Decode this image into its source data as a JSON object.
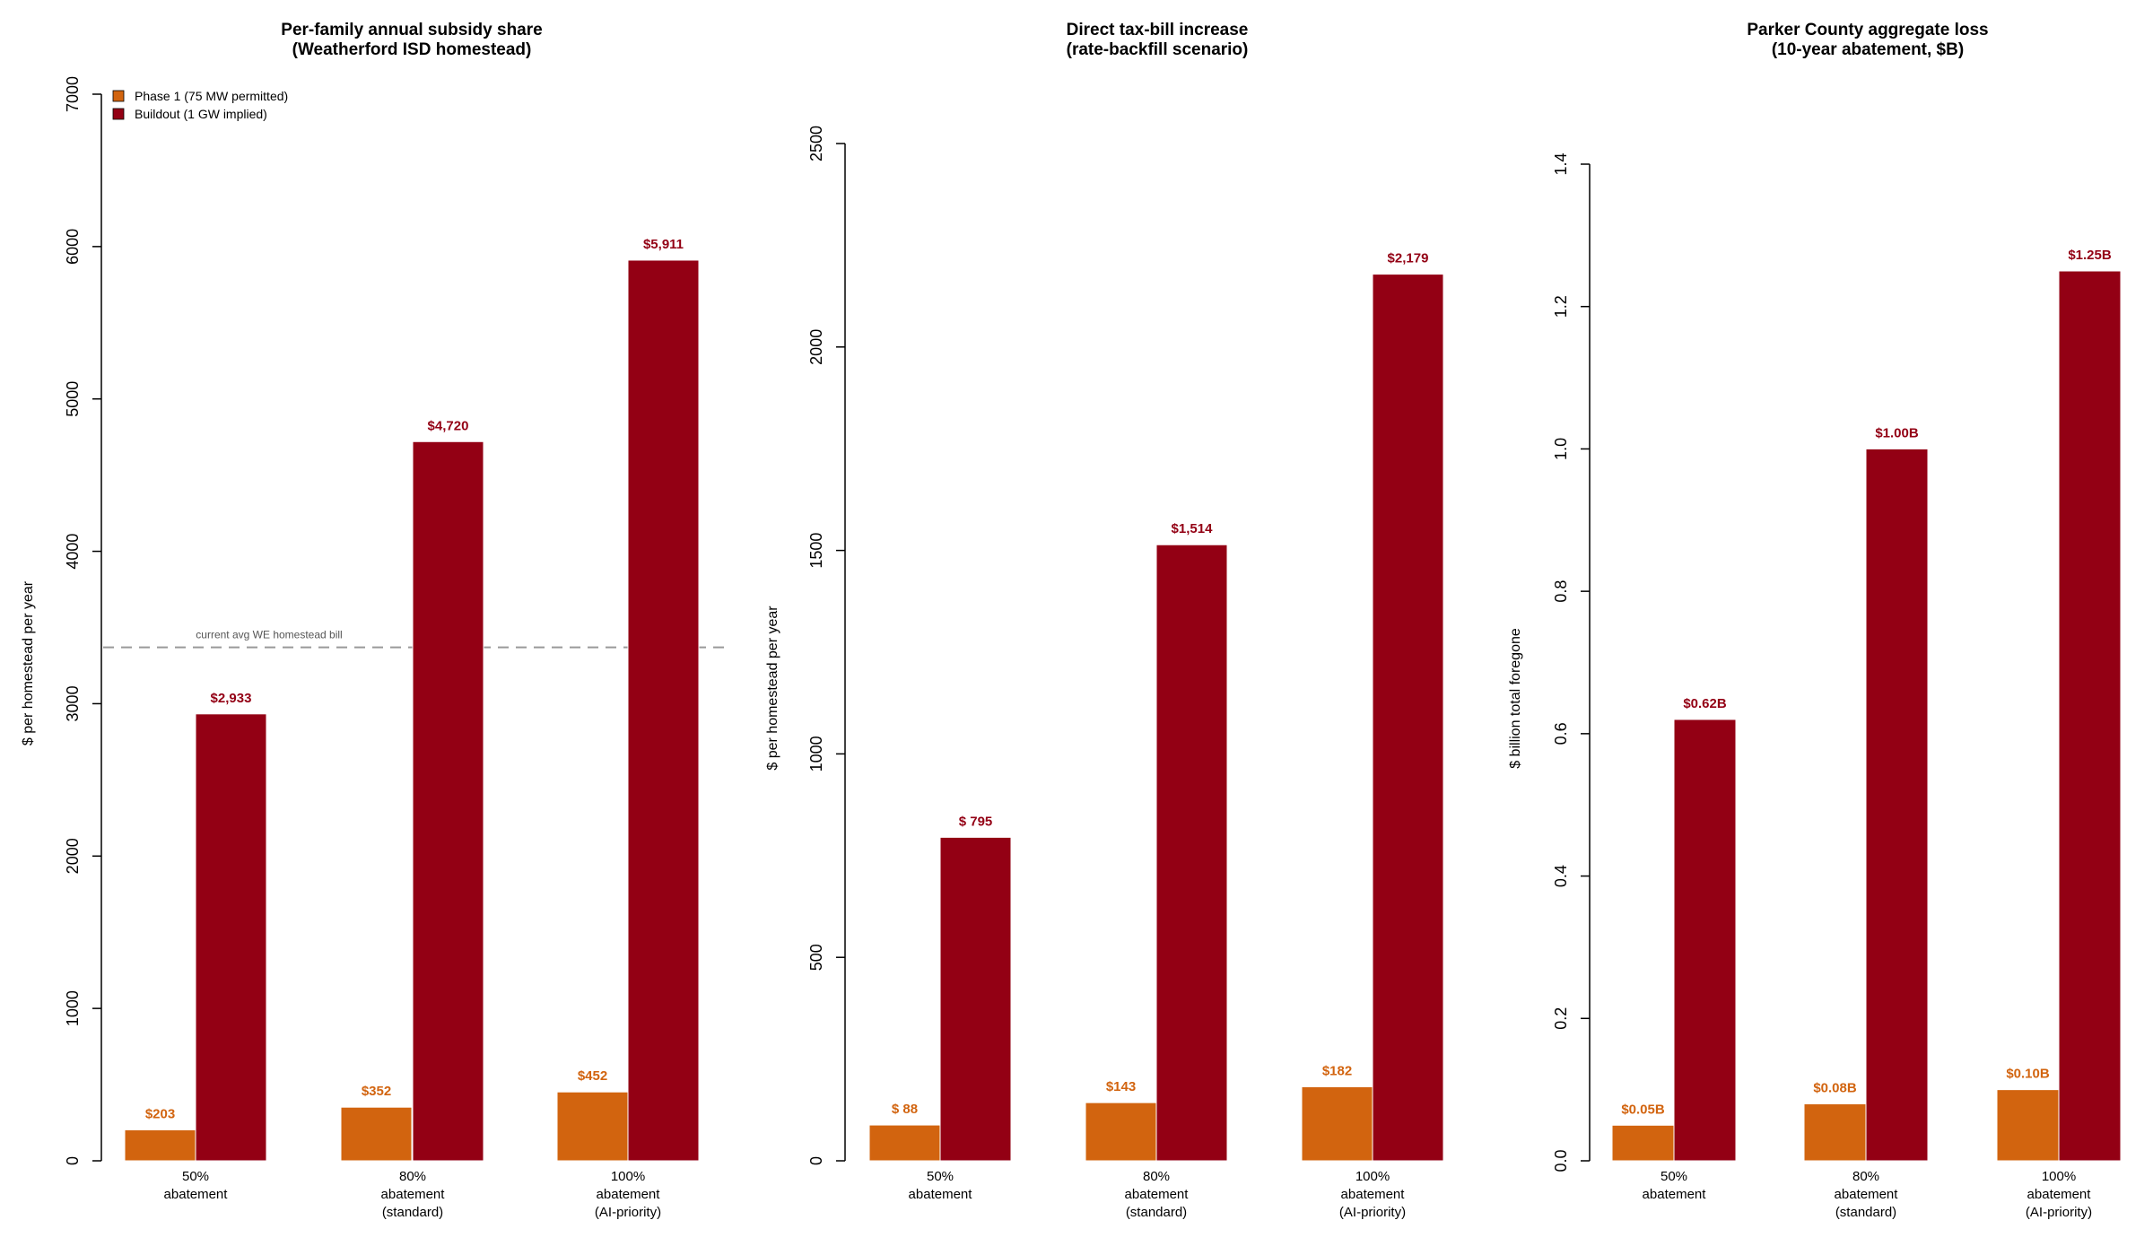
{
  "colors": {
    "phase1": "#D2640F",
    "buildout": "#930014",
    "reference_line": "#999999"
  },
  "legend": {
    "placement": "top-left",
    "items": [
      "Phase 1 (75 MW permitted)",
      "Buildout (1 GW implied)"
    ]
  },
  "chart_data": [
    {
      "type": "bar",
      "title": [
        "Per-family annual subsidy share",
        "(Weatherford ISD homestead)"
      ],
      "ylabel": "$ per homestead per year",
      "ylim": [
        0,
        7000
      ],
      "yticks": [
        0,
        1000,
        2000,
        3000,
        4000,
        5000,
        6000,
        7000
      ],
      "ytick_labels": [
        "0",
        "1000",
        "2000",
        "3000",
        "4000",
        "5000",
        "6000",
        "7000"
      ],
      "categories": [
        [
          "50%",
          "abatement"
        ],
        [
          "80%",
          "abatement",
          "(standard)"
        ],
        [
          "100%",
          "abatement",
          "(AI-priority)"
        ]
      ],
      "series": [
        {
          "name": "Phase 1 (75 MW permitted)",
          "values": [
            203,
            352,
            452
          ],
          "labels": [
            "$203",
            "$352",
            "$452"
          ]
        },
        {
          "name": "Buildout (1 GW implied)",
          "values": [
            2933,
            4720,
            5911
          ],
          "labels": [
            "$2,933",
            "$4,720",
            "$5,911"
          ]
        }
      ],
      "reference_line": {
        "value": 3370,
        "label": "current avg WE homestead bill",
        "style": "dashed"
      },
      "grid": false
    },
    {
      "type": "bar",
      "title": [
        "Direct tax-bill increase",
        "(rate-backfill scenario)"
      ],
      "ylabel": "$ per homestead per year",
      "ylim": [
        0,
        2500
      ],
      "yticks": [
        0,
        500,
        1000,
        1500,
        2000,
        2500
      ],
      "ytick_labels": [
        "0",
        "500",
        "1000",
        "1500",
        "2000",
        "2500"
      ],
      "categories": [
        [
          "50%",
          "abatement"
        ],
        [
          "80%",
          "abatement",
          "(standard)"
        ],
        [
          "100%",
          "abatement",
          "(AI-priority)"
        ]
      ],
      "series": [
        {
          "name": "Phase 1 (75 MW permitted)",
          "values": [
            88,
            143,
            182
          ],
          "labels": [
            "$ 88",
            "$143",
            "$182"
          ]
        },
        {
          "name": "Buildout (1 GW implied)",
          "values": [
            795,
            1514,
            2179
          ],
          "labels": [
            "$  795",
            "$1,514",
            "$2,179"
          ]
        }
      ],
      "grid": false
    },
    {
      "type": "bar",
      "title": [
        "Parker County aggregate loss",
        "(10-year abatement, $B)"
      ],
      "ylabel": "$ billion total foregone",
      "ylim": [
        0,
        1.4
      ],
      "yticks": [
        0,
        0.2,
        0.4,
        0.6,
        0.8,
        1.0,
        1.2,
        1.4
      ],
      "ytick_labels": [
        "0.0",
        "0.2",
        "0.4",
        "0.6",
        "0.8",
        "1.0",
        "1.2",
        "1.4"
      ],
      "categories": [
        [
          "50%",
          "abatement"
        ],
        [
          "80%",
          "abatement",
          "(standard)"
        ],
        [
          "100%",
          "abatement",
          "(AI-priority)"
        ]
      ],
      "series": [
        {
          "name": "Phase 1 (75 MW permitted)",
          "values": [
            0.05,
            0.08,
            0.1
          ],
          "labels": [
            "$0.05B",
            "$0.08B",
            "$0.10B"
          ]
        },
        {
          "name": "Buildout (1 GW implied)",
          "values": [
            0.62,
            1.0,
            1.25
          ],
          "labels": [
            "$0.62B",
            "$1.00B",
            "$1.25B"
          ]
        }
      ],
      "grid": false
    }
  ]
}
